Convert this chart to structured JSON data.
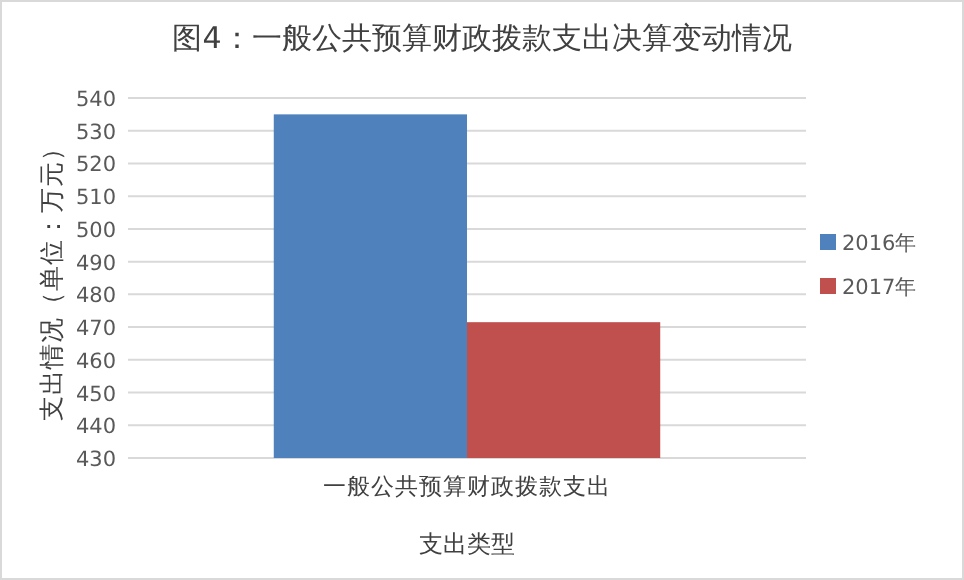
{
  "chart_data": {
    "type": "bar",
    "title": "图4：一般公共预算财政拨款支出决算变动情况",
    "xlabel": "支出类型",
    "ylabel": "支出情况（单位：万元）",
    "categories": [
      "一般公共预算财政拨款支出"
    ],
    "series": [
      {
        "name": "2016年",
        "color": "#4f81bd",
        "values": [
          535
        ]
      },
      {
        "name": "2017年",
        "color": "#c0504d",
        "values": [
          471.5
        ]
      }
    ],
    "ylim": [
      430,
      540
    ],
    "yticks": [
      430,
      440,
      450,
      460,
      470,
      480,
      490,
      500,
      510,
      520,
      530,
      540
    ],
    "grid": "y",
    "legend": "right"
  }
}
